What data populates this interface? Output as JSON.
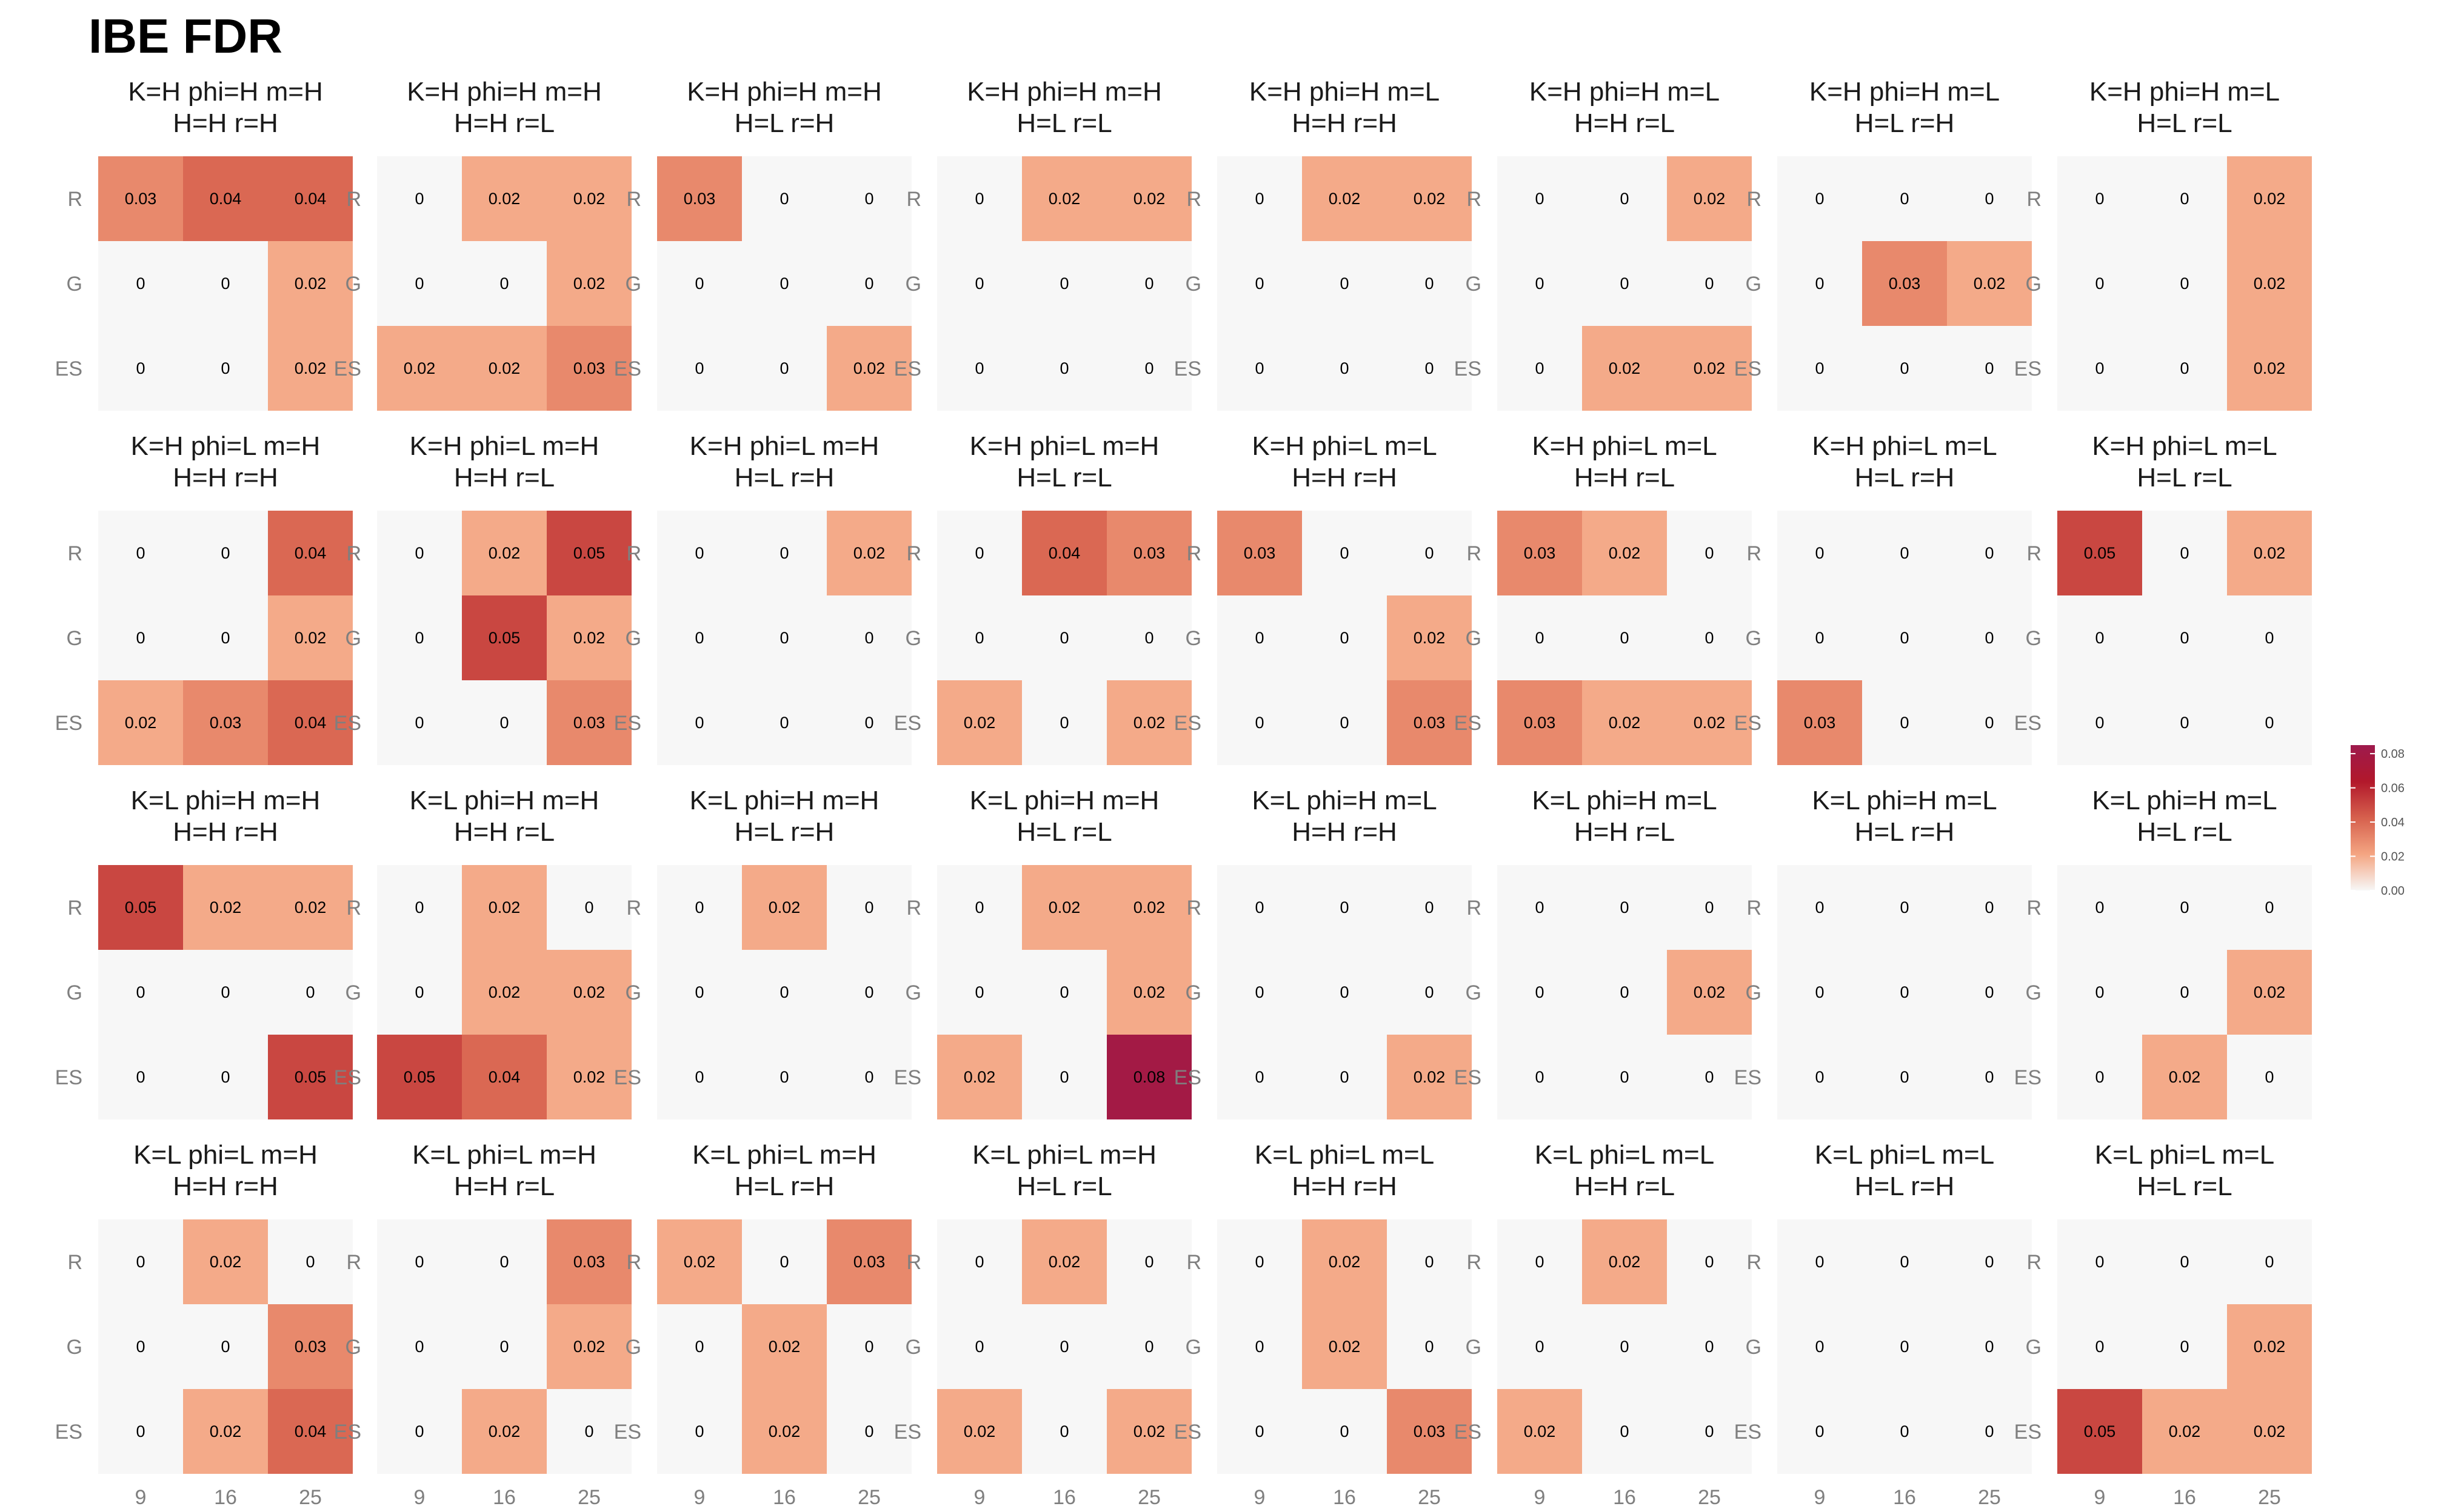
{
  "chart_data": {
    "type": "heatmap",
    "title": "IBE FDR",
    "row_categories": [
      "R",
      "G",
      "ES"
    ],
    "col_categories": [
      "9",
      "16",
      "25"
    ],
    "color_scale": {
      "min": 0,
      "max": 0.085,
      "stops": [
        "#f7f7f7",
        "#f4a582",
        "#d6604d",
        "#b2182b",
        "#9e1a4d"
      ],
      "legend_ticks": [
        "0.00",
        "0.02",
        "0.04",
        "0.06",
        "0.08"
      ]
    },
    "facets": [
      {
        "title": [
          "K=H phi=H m=H",
          "H=H r=H"
        ],
        "values": [
          [
            0.03,
            0.04,
            0.04
          ],
          [
            0,
            0,
            0.02
          ],
          [
            0,
            0,
            0.02
          ]
        ]
      },
      {
        "title": [
          "K=H phi=H m=H",
          "H=H r=L"
        ],
        "values": [
          [
            0,
            0.02,
            0.02
          ],
          [
            0,
            0,
            0.02
          ],
          [
            0.02,
            0.02,
            0.03
          ]
        ]
      },
      {
        "title": [
          "K=H phi=H m=H",
          "H=L r=H"
        ],
        "values": [
          [
            0.03,
            0,
            0
          ],
          [
            0,
            0,
            0
          ],
          [
            0,
            0,
            0.02
          ]
        ]
      },
      {
        "title": [
          "K=H phi=H m=H",
          "H=L r=L"
        ],
        "values": [
          [
            0,
            0.02,
            0.02
          ],
          [
            0,
            0,
            0
          ],
          [
            0,
            0,
            0
          ]
        ]
      },
      {
        "title": [
          "K=H phi=H m=L",
          "H=H r=H"
        ],
        "values": [
          [
            0,
            0.02,
            0.02
          ],
          [
            0,
            0,
            0
          ],
          [
            0,
            0,
            0
          ]
        ]
      },
      {
        "title": [
          "K=H phi=H m=L",
          "H=H r=L"
        ],
        "values": [
          [
            0,
            0,
            0.02
          ],
          [
            0,
            0,
            0
          ],
          [
            0,
            0.02,
            0.02
          ]
        ]
      },
      {
        "title": [
          "K=H phi=H m=L",
          "H=L r=H"
        ],
        "values": [
          [
            0,
            0,
            0
          ],
          [
            0,
            0.03,
            0.02
          ],
          [
            0,
            0,
            0
          ]
        ]
      },
      {
        "title": [
          "K=H phi=H m=L",
          "H=L r=L"
        ],
        "values": [
          [
            0,
            0,
            0.02
          ],
          [
            0,
            0,
            0.02
          ],
          [
            0,
            0,
            0.02
          ]
        ]
      },
      {
        "title": [
          "K=H phi=L m=H",
          "H=H r=H"
        ],
        "values": [
          [
            0,
            0,
            0.04
          ],
          [
            0,
            0,
            0.02
          ],
          [
            0.02,
            0.03,
            0.04
          ]
        ]
      },
      {
        "title": [
          "K=H phi=L m=H",
          "H=H r=L"
        ],
        "values": [
          [
            0,
            0.02,
            0.05
          ],
          [
            0,
            0.05,
            0.02
          ],
          [
            0,
            0,
            0.03
          ]
        ]
      },
      {
        "title": [
          "K=H phi=L m=H",
          "H=L r=H"
        ],
        "values": [
          [
            0,
            0,
            0.02
          ],
          [
            0,
            0,
            0
          ],
          [
            0,
            0,
            0
          ]
        ]
      },
      {
        "title": [
          "K=H phi=L m=H",
          "H=L r=L"
        ],
        "values": [
          [
            0,
            0.04,
            0.03
          ],
          [
            0,
            0,
            0
          ],
          [
            0.02,
            0,
            0.02
          ]
        ]
      },
      {
        "title": [
          "K=H phi=L m=L",
          "H=H r=H"
        ],
        "values": [
          [
            0.03,
            0,
            0
          ],
          [
            0,
            0,
            0.02
          ],
          [
            0,
            0,
            0.03
          ]
        ]
      },
      {
        "title": [
          "K=H phi=L m=L",
          "H=H r=L"
        ],
        "values": [
          [
            0.03,
            0.02,
            0
          ],
          [
            0,
            0,
            0
          ],
          [
            0.03,
            0.02,
            0.02
          ]
        ]
      },
      {
        "title": [
          "K=H phi=L m=L",
          "H=L r=H"
        ],
        "values": [
          [
            0,
            0,
            0
          ],
          [
            0,
            0,
            0
          ],
          [
            0.03,
            0,
            0
          ]
        ]
      },
      {
        "title": [
          "K=H phi=L m=L",
          "H=L r=L"
        ],
        "values": [
          [
            0.05,
            0,
            0.02
          ],
          [
            0,
            0,
            0
          ],
          [
            0,
            0,
            0
          ]
        ]
      },
      {
        "title": [
          "K=L phi=H m=H",
          "H=H r=H"
        ],
        "values": [
          [
            0.05,
            0.02,
            0.02
          ],
          [
            0,
            0,
            0
          ],
          [
            0,
            0,
            0.05
          ]
        ]
      },
      {
        "title": [
          "K=L phi=H m=H",
          "H=H r=L"
        ],
        "values": [
          [
            0,
            0.02,
            0
          ],
          [
            0,
            0.02,
            0.02
          ],
          [
            0.05,
            0.04,
            0.02
          ]
        ]
      },
      {
        "title": [
          "K=L phi=H m=H",
          "H=L r=H"
        ],
        "values": [
          [
            0,
            0.02,
            0
          ],
          [
            0,
            0,
            0
          ],
          [
            0,
            0,
            0
          ]
        ]
      },
      {
        "title": [
          "K=L phi=H m=H",
          "H=L r=L"
        ],
        "values": [
          [
            0,
            0.02,
            0.02
          ],
          [
            0,
            0,
            0.02
          ],
          [
            0.02,
            0,
            0.08
          ]
        ]
      },
      {
        "title": [
          "K=L phi=H m=L",
          "H=H r=H"
        ],
        "values": [
          [
            0,
            0,
            0
          ],
          [
            0,
            0,
            0
          ],
          [
            0,
            0,
            0.02
          ]
        ]
      },
      {
        "title": [
          "K=L phi=H m=L",
          "H=H r=L"
        ],
        "values": [
          [
            0,
            0,
            0
          ],
          [
            0,
            0,
            0.02
          ],
          [
            0,
            0,
            0
          ]
        ]
      },
      {
        "title": [
          "K=L phi=H m=L",
          "H=L r=H"
        ],
        "values": [
          [
            0,
            0,
            0
          ],
          [
            0,
            0,
            0
          ],
          [
            0,
            0,
            0
          ]
        ]
      },
      {
        "title": [
          "K=L phi=H m=L",
          "H=L r=L"
        ],
        "values": [
          [
            0,
            0,
            0
          ],
          [
            0,
            0,
            0.02
          ],
          [
            0,
            0.02,
            0
          ]
        ]
      },
      {
        "title": [
          "K=L phi=L m=H",
          "H=H r=H"
        ],
        "values": [
          [
            0,
            0.02,
            0
          ],
          [
            0,
            0,
            0.03
          ],
          [
            0,
            0.02,
            0.04
          ]
        ]
      },
      {
        "title": [
          "K=L phi=L m=H",
          "H=H r=L"
        ],
        "values": [
          [
            0,
            0,
            0.03
          ],
          [
            0,
            0,
            0.02
          ],
          [
            0,
            0.02,
            0
          ]
        ]
      },
      {
        "title": [
          "K=L phi=L m=H",
          "H=L r=H"
        ],
        "values": [
          [
            0.02,
            0,
            0.03
          ],
          [
            0,
            0.02,
            0
          ],
          [
            0,
            0.02,
            0
          ]
        ]
      },
      {
        "title": [
          "K=L phi=L m=H",
          "H=L r=L"
        ],
        "values": [
          [
            0,
            0.02,
            0
          ],
          [
            0,
            0,
            0
          ],
          [
            0.02,
            0,
            0.02
          ]
        ]
      },
      {
        "title": [
          "K=L phi=L m=L",
          "H=H r=H"
        ],
        "values": [
          [
            0,
            0.02,
            0
          ],
          [
            0,
            0.02,
            0
          ],
          [
            0,
            0,
            0.03
          ]
        ]
      },
      {
        "title": [
          "K=L phi=L m=L",
          "H=H r=L"
        ],
        "values": [
          [
            0,
            0.02,
            0
          ],
          [
            0,
            0,
            0
          ],
          [
            0.02,
            0,
            0
          ]
        ]
      },
      {
        "title": [
          "K=L phi=L m=L",
          "H=L r=H"
        ],
        "values": [
          [
            0,
            0,
            0
          ],
          [
            0,
            0,
            0
          ],
          [
            0,
            0,
            0
          ]
        ]
      },
      {
        "title": [
          "K=L phi=L m=L",
          "H=L r=L"
        ],
        "values": [
          [
            0,
            0,
            0
          ],
          [
            0,
            0,
            0.02
          ],
          [
            0.05,
            0.02,
            0.02
          ]
        ]
      }
    ]
  }
}
